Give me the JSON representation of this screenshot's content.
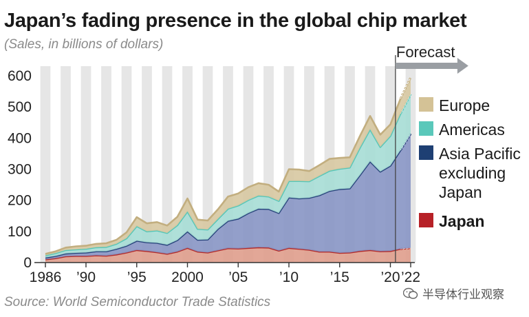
{
  "title": "Japan’s fading presence in the global chip market",
  "subtitle": "(Sales, in billions of dollars)",
  "source": "Source: World Semiconductor Trade Statistics",
  "forecast_label": "Forecast",
  "watermark": "半导体行业观察",
  "colors": {
    "europe": "#d8c9a3",
    "americas": "#a8ddd6",
    "asia_pacific": "#8a97c6",
    "japan": "#e0a08e",
    "europe_line": "#c2ae7f",
    "americas_line": "#52c6b8",
    "asia_pacific_line": "#26427a",
    "japan_line": "#b22a2a",
    "legend_europe": "#d4c296",
    "legend_americas": "#5ac8ba",
    "legend_asia_pacific": "#1e3f73",
    "legend_japan": "#b72127",
    "stripe": "#e6e6e6",
    "forecast_arrow": "#9a9ea3"
  },
  "chart_data": {
    "type": "area",
    "stacked": true,
    "x": [
      1986,
      1987,
      1988,
      1989,
      1990,
      1991,
      1992,
      1993,
      1994,
      1995,
      1996,
      1997,
      1998,
      1999,
      2000,
      2001,
      2002,
      2003,
      2004,
      2005,
      2006,
      2007,
      2008,
      2009,
      2010,
      2011,
      2012,
      2013,
      2014,
      2015,
      2016,
      2017,
      2018,
      2019,
      2020,
      2021,
      2022
    ],
    "x_tick_labels": [
      {
        "x": 1986,
        "label": "1986"
      },
      {
        "x": 1990,
        "label": "’90"
      },
      {
        "x": 1995,
        "label": "’95"
      },
      {
        "x": 2000,
        "label": "2000"
      },
      {
        "x": 2005,
        "label": "’05"
      },
      {
        "x": 2010,
        "label": "’10"
      },
      {
        "x": 2015,
        "label": "’15"
      },
      {
        "x": 2020,
        "label": "’20"
      },
      {
        "x": 2022,
        "label": "’22"
      }
    ],
    "forecast_start": 2021,
    "ylim": [
      0,
      600
    ],
    "y_ticks": [
      0,
      100,
      200,
      300,
      400,
      500,
      600
    ],
    "series": [
      {
        "name": "Japan",
        "key": "japan",
        "values": [
          10,
          14,
          20,
          21,
          21,
          23,
          22,
          26,
          32,
          40,
          37,
          33,
          28,
          35,
          47,
          35,
          32,
          39,
          46,
          45,
          47,
          49,
          48,
          38,
          47,
          44,
          41,
          35,
          35,
          31,
          32,
          37,
          40,
          36,
          37,
          44,
          47
        ]
      },
      {
        "name": "Asia Pacific excluding Japan",
        "key": "asia_pacific",
        "values": [
          6,
          7,
          9,
          10,
          11,
          13,
          14,
          18,
          22,
          30,
          28,
          30,
          29,
          37,
          53,
          38,
          42,
          69,
          88,
          96,
          112,
          124,
          124,
          121,
          162,
          162,
          167,
          181,
          195,
          205,
          206,
          244,
          285,
          256,
          274,
          317,
          367
        ]
      },
      {
        "name": "Americas",
        "key": "americas",
        "values": [
          7,
          9,
          11,
          11,
          12,
          13,
          14,
          16,
          24,
          47,
          35,
          40,
          38,
          48,
          64,
          35,
          32,
          32,
          39,
          42,
          42,
          42,
          40,
          39,
          53,
          56,
          53,
          62,
          65,
          65,
          67,
          88,
          103,
          79,
          96,
          118,
          127
        ]
      },
      {
        "name": "Europe",
        "key": "europe",
        "values": [
          5,
          6,
          8,
          10,
          10,
          11,
          12,
          13,
          19,
          29,
          26,
          27,
          24,
          27,
          42,
          30,
          29,
          31,
          39,
          39,
          41,
          40,
          38,
          30,
          38,
          37,
          33,
          35,
          38,
          35,
          33,
          38,
          43,
          40,
          37,
          48,
          54
        ]
      }
    ],
    "legend": [
      "Europe",
      "Americas",
      "Asia Pacific excluding Japan",
      "Japan"
    ],
    "legend_lines": {
      "europe": [
        "Europe"
      ],
      "americas": [
        "Americas"
      ],
      "asia_pacific": [
        "Asia Pacific",
        "excluding",
        "Japan"
      ],
      "japan": [
        "Japan"
      ]
    },
    "legend_placement": "right",
    "grid": false,
    "background_stripes": "alternate years"
  }
}
